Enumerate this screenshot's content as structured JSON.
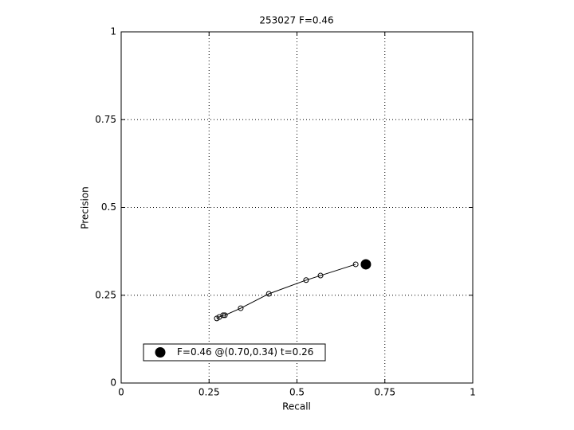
{
  "chart_data": {
    "type": "line",
    "title": "253027 F=0.46",
    "x_label": "Recall",
    "y_label": "Precision",
    "xlim": [
      0,
      1
    ],
    "ylim": [
      0,
      1
    ],
    "xticks": [
      0,
      0.25,
      0.5,
      0.75,
      1
    ],
    "yticks": [
      0,
      0.25,
      0.5,
      0.75,
      1
    ],
    "grid": true,
    "legend_position": "lower left",
    "series": [
      {
        "color": "#000000",
        "marker": "open",
        "x": [
          0.272,
          0.279,
          0.29,
          0.295,
          0.34,
          0.42,
          0.526,
          0.567,
          0.667
        ],
        "values": [
          0.184,
          0.188,
          0.193,
          0.193,
          0.213,
          0.254,
          0.293,
          0.306,
          0.338
        ]
      },
      {
        "name": "F=0.46 @(0.70,0.34) t=0.26",
        "color": "#000000",
        "marker": "filled",
        "x": [
          0.696
        ],
        "values": [
          0.338
        ]
      }
    ]
  }
}
